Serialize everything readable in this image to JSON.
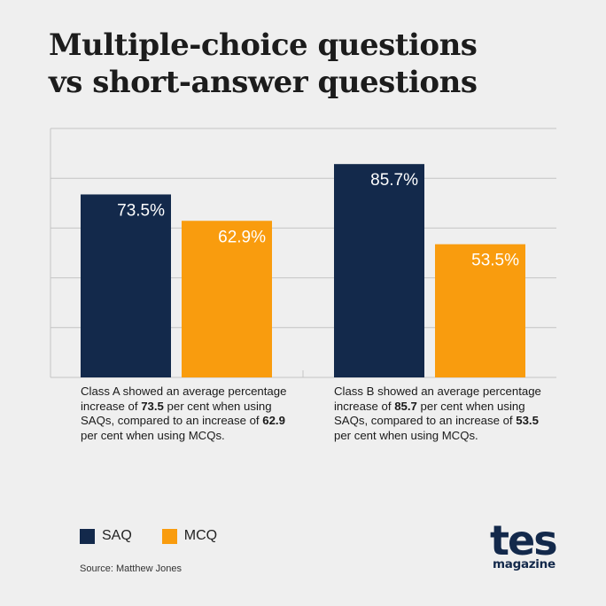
{
  "title_lines": [
    "Multiple-choice questions",
    "vs short-answer questions"
  ],
  "chart_data": {
    "type": "bar",
    "categories": [
      "Class A",
      "Class B"
    ],
    "series": [
      {
        "name": "SAQ",
        "values": [
          73.5,
          85.7
        ],
        "labels": [
          "73.5%",
          "85.7%"
        ],
        "color": "#13294b"
      },
      {
        "name": "MCQ",
        "values": [
          62.9,
          53.5
        ],
        "labels": [
          "62.9%",
          "53.5%"
        ],
        "color": "#f99c0e"
      }
    ],
    "ylim": [
      0,
      100
    ],
    "grid": true,
    "legend_position": "bottom-left"
  },
  "captions": [
    {
      "text_1": "Class A showed an average percentage increase of ",
      "saq_value": "73.5",
      "text_2": " per cent when using SAQs, compared to an increase of ",
      "mcq_value": "62.9",
      "text_3": " per cent when using MCQs."
    },
    {
      "text_1": "Class B showed an average percentage increase of ",
      "saq_value": "85.7",
      "text_2": " per cent when using SAQs, compared to an increase of ",
      "mcq_value": "53.5",
      "text_3": " per cent when using MCQs."
    }
  ],
  "legend": [
    {
      "label": "SAQ",
      "color": "#13294b"
    },
    {
      "label": "MCQ",
      "color": "#f99c0e"
    }
  ],
  "source": "Source: Matthew Jones",
  "logo": {
    "word": "tes",
    "sub": "magazine"
  }
}
